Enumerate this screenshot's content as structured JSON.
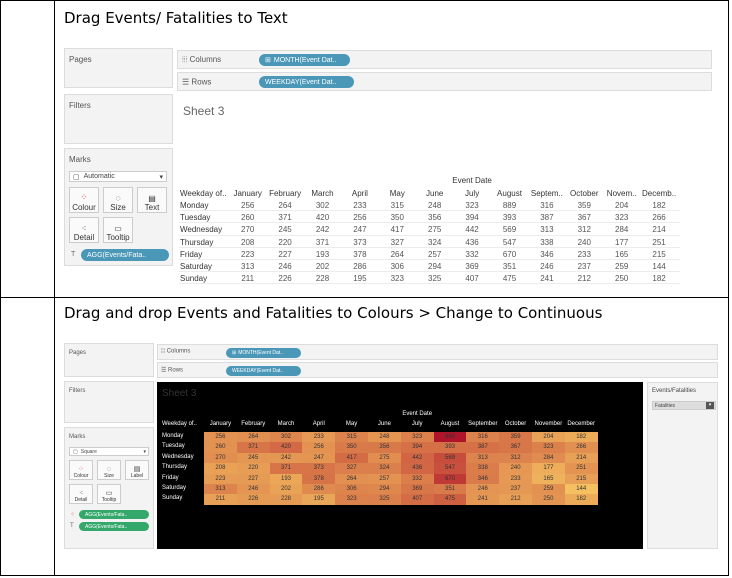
{
  "steps": [
    {
      "caption": "Drag Events/ Fatalities to Text"
    },
    {
      "caption": "Drag and drop Events and Fatalities to Colours > Change to Continuous"
    }
  ],
  "tableau": {
    "pages_label": "Pages",
    "filters_label": "Filters",
    "marks_label": "Marks",
    "columns_label": "Columns",
    "rows_label": "Rows",
    "columns_pill": "MONTH(Event Dat..",
    "rows_pill": "WEEKDAY(Event Dat..",
    "sheet_title": "Sheet 3",
    "col_header_title": "Event Date",
    "row_header_title": "Weekday of..",
    "mark_buttons": [
      "Colour",
      "Size",
      "Text",
      "Detail",
      "Tooltip"
    ],
    "mark_buttons_square": [
      "Colour",
      "Size",
      "Label",
      "Detail",
      "Tooltip"
    ],
    "mark_type_1": "Automatic",
    "mark_type_2": "Square",
    "agg_pill": "AGG(Events/Fata..",
    "agg_pill_2": "AGG(Events/Fata..",
    "legend_title": "Events/Fatalities",
    "legend_value": "Fatalities"
  },
  "table": {
    "months_short": [
      "January",
      "February",
      "March",
      "April",
      "May",
      "June",
      "July",
      "August",
      "Septem..",
      "October",
      "Novem..",
      "Decemb.."
    ],
    "months_full": [
      "January",
      "February",
      "March",
      "April",
      "May",
      "June",
      "July",
      "August",
      "September",
      "October",
      "November",
      "December"
    ],
    "weekdays": [
      "Monday",
      "Tuesday",
      "Wednesday",
      "Thursday",
      "Friday",
      "Saturday",
      "Sunday"
    ],
    "values": [
      [
        256,
        264,
        302,
        233,
        315,
        248,
        323,
        889,
        316,
        359,
        204,
        182
      ],
      [
        260,
        371,
        420,
        256,
        350,
        356,
        394,
        393,
        387,
        367,
        323,
        266
      ],
      [
        270,
        245,
        242,
        247,
        417,
        275,
        442,
        569,
        313,
        312,
        284,
        214
      ],
      [
        208,
        220,
        371,
        373,
        327,
        324,
        436,
        547,
        338,
        240,
        177,
        251
      ],
      [
        223,
        227,
        193,
        378,
        264,
        257,
        332,
        670,
        346,
        233,
        165,
        215
      ],
      [
        313,
        246,
        202,
        286,
        306,
        294,
        369,
        351,
        246,
        237,
        259,
        144
      ],
      [
        211,
        226,
        228,
        195,
        323,
        325,
        407,
        475,
        241,
        212,
        250,
        182
      ]
    ]
  },
  "colors": {
    "heat_low": "#f5c060",
    "heat_high": "#b0142a",
    "teal": "#4a97b8",
    "green": "#33a86a"
  }
}
